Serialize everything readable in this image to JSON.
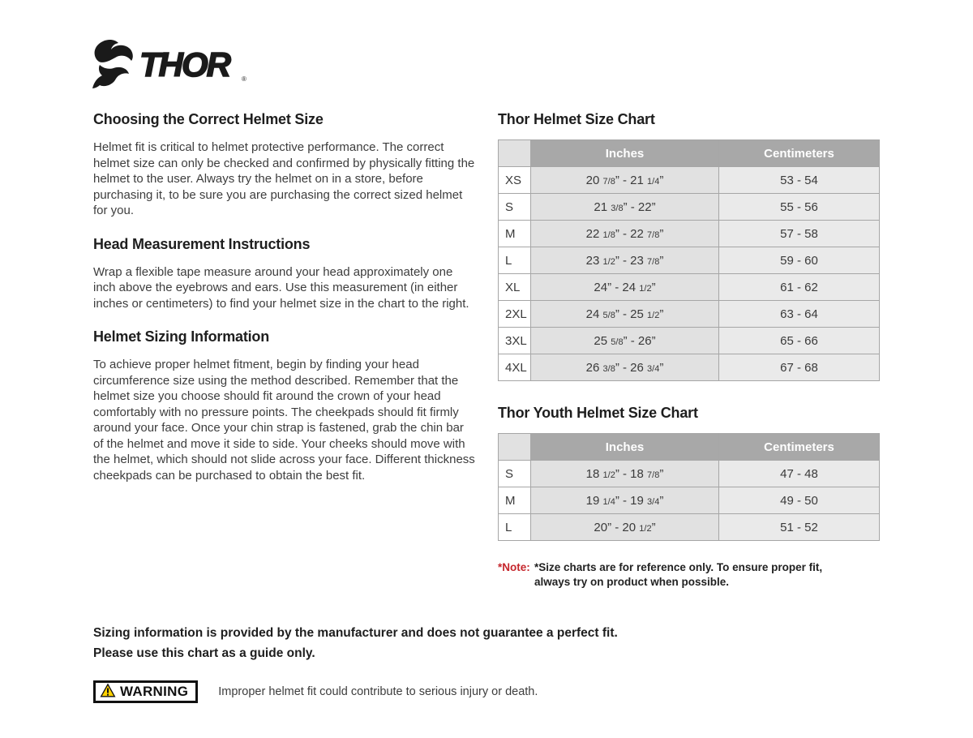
{
  "brand": {
    "name": "THOR"
  },
  "sections": [
    {
      "heading": "Choosing the Correct Helmet Size",
      "body": "Helmet fit is critical to helmet protective performance. The correct helmet size can only be checked and confirmed by physically fitting the helmet to the user. Always try the helmet on in a store, before purchasing it, to be sure you are purchasing the correct sized helmet for you."
    },
    {
      "heading": "Head Measurement Instructions",
      "body": "Wrap a flexible tape measure around your head approximately one inch above the eyebrows and ears. Use this measurement (in either inches or centimeters) to find your helmet size in the chart to the right."
    },
    {
      "heading": "Helmet Sizing Information",
      "body": "To achieve proper helmet fitment, begin by finding your head circumference size using the method described. Remember that the helmet size you choose should fit around the crown of your head comfortably with no pressure points. The cheekpads should fit firmly around your face. Once your chin strap is fastened, grab the chin bar of the helmet and move it side to side. Your cheeks should move with the helmet, which should not slide across your face. Different thickness cheekpads can be purchased to obtain the best fit."
    }
  ],
  "size_charts": [
    {
      "title": "Thor Helmet Size Chart",
      "columns": {
        "inches": "Inches",
        "centimeters": "Centimeters"
      },
      "rows": [
        {
          "size": "XS",
          "inches": "20 7/8” - 21 1/4”",
          "cm": "53 - 54"
        },
        {
          "size": "S",
          "inches": "21 3/8” - 22”",
          "cm": "55 - 56"
        },
        {
          "size": "M",
          "inches": "22 1/8” - 22 7/8”",
          "cm": "57 - 58"
        },
        {
          "size": "L",
          "inches": "23 1/2” - 23 7/8”",
          "cm": "59 - 60"
        },
        {
          "size": "XL",
          "inches": "24” - 24 1/2”",
          "cm": "61 - 62"
        },
        {
          "size": "2XL",
          "inches": "24 5/8” - 25 1/2”",
          "cm": "63 - 64"
        },
        {
          "size": "3XL",
          "inches": "25 5/8” - 26”",
          "cm": "65 - 66"
        },
        {
          "size": "4XL",
          "inches": "26 3/8” - 26 3/4”",
          "cm": "67 - 68"
        }
      ]
    },
    {
      "title": "Thor Youth Helmet Size Chart",
      "columns": {
        "inches": "Inches",
        "centimeters": "Centimeters"
      },
      "rows": [
        {
          "size": "S",
          "inches": "18 1/2” - 18 7/8”",
          "cm": "47 - 48"
        },
        {
          "size": "M",
          "inches": "19 1/4” - 19 3/4”",
          "cm": "49 - 50"
        },
        {
          "size": "L",
          "inches": "20” - 20 1/2”",
          "cm": "51 - 52"
        }
      ]
    }
  ],
  "note": {
    "label": "*Note:",
    "text": "*Size charts are for reference only. To ensure proper fit, always try on product when possible."
  },
  "disclaimer": {
    "line1": "Sizing information is provided by the manufacturer and does not guarantee a perfect fit.",
    "line2": "Please use this chart as a guide only."
  },
  "warning": {
    "label": "WARNING",
    "text": "Improper helmet fit could contribute to serious injury or death."
  },
  "colors": {
    "table_header_bg": "#a8a8a8",
    "table_inches_bg": "#e1e1e1",
    "table_cm_bg": "#eaeaea",
    "table_border": "#a6a6a6",
    "note_red": "#c5262c",
    "warning_yellow": "#ffd200",
    "ink": "#1e1e1e"
  }
}
